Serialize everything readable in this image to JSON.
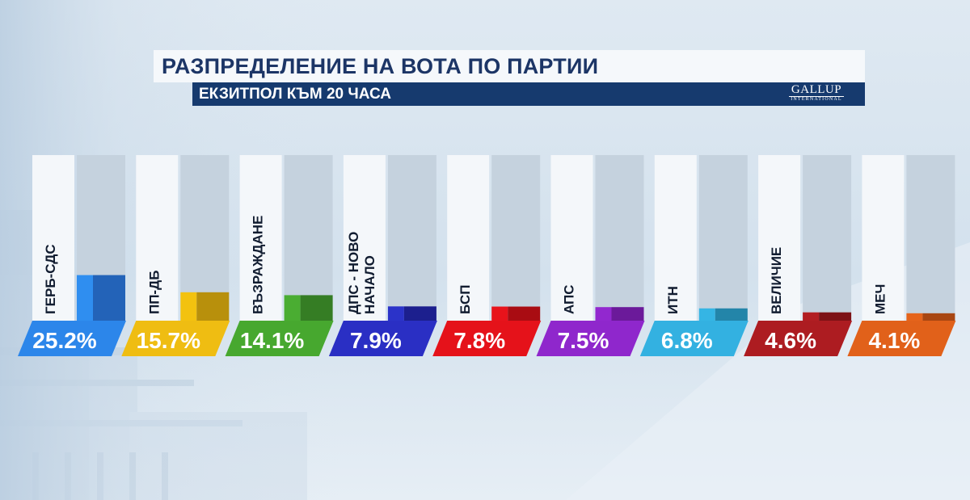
{
  "header": {
    "title": "РАЗПРЕДЕЛЕНИЕ НА ВОТА ПО ПАРТИИ",
    "subtitle": "ЕКЗИТПОЛ КЪМ 20 ЧАСА",
    "logo_top": "GALLUP",
    "logo_bottom": "INTERNATIONAL"
  },
  "chart_data": {
    "type": "bar",
    "title": "РАЗПРЕДЕЛЕНИЕ НА ВОТА ПО ПАРТИИ",
    "subtitle": "ЕКЗИТПОЛ КЪМ 20 ЧАСА",
    "xlabel": "",
    "ylabel": "",
    "categories": [
      [
        "ГЕРБ-СДС"
      ],
      [
        "ПП-ДБ"
      ],
      [
        "ВЪЗРАЖДАНЕ"
      ],
      [
        "ДПС - НОВО",
        "НАЧАЛО"
      ],
      [
        "БСП"
      ],
      [
        "АПС"
      ],
      [
        "ИТН"
      ],
      [
        "ВЕЛИЧИЕ"
      ],
      [
        "МЕЧ"
      ]
    ],
    "values": [
      25.2,
      15.7,
      14.1,
      7.9,
      7.8,
      7.5,
      6.8,
      4.6,
      4.1
    ],
    "value_labels": [
      "25.2%",
      "15.7%",
      "14.1%",
      "7.9%",
      "7.8%",
      "7.5%",
      "6.8%",
      "4.6%",
      "4.1%"
    ],
    "colors": [
      {
        "light": "#2f8ef0",
        "dark": "#2363b8",
        "tag": "#2c86ea"
      },
      {
        "light": "#f3c20f",
        "dark": "#b8900c",
        "tag": "#efbd12"
      },
      {
        "light": "#4aad32",
        "dark": "#357d24",
        "tag": "#47a82f"
      },
      {
        "light": "#2b33c9",
        "dark": "#1c1f8e",
        "tag": "#2a2fc4"
      },
      {
        "light": "#e8131b",
        "dark": "#a90c12",
        "tag": "#e5121a"
      },
      {
        "light": "#9228cf",
        "dark": "#6b1a9a",
        "tag": "#8f27cc"
      },
      {
        "light": "#35b5e4",
        "dark": "#2385a9",
        "tag": "#33b1e1"
      },
      {
        "light": "#b21d22",
        "dark": "#7d1216",
        "tag": "#ad1c21"
      },
      {
        "light": "#e5641b",
        "dark": "#a84612",
        "tag": "#e1611a"
      }
    ],
    "ylim": [
      0,
      100
    ],
    "grid": false,
    "legend": "none"
  }
}
